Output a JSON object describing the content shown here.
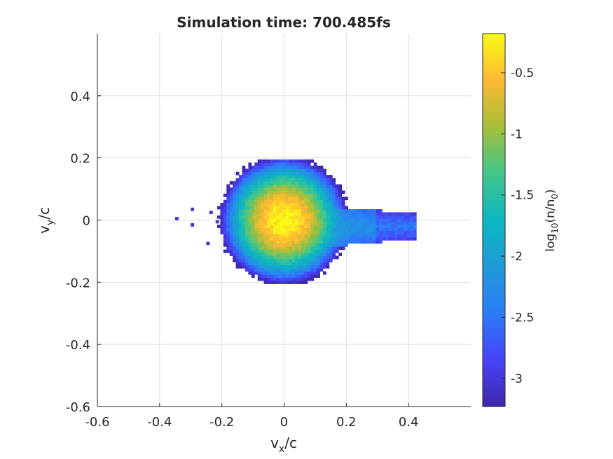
{
  "chart_data": {
    "type": "heatmap",
    "title": "Simulation time: 700.485fs",
    "xlabel": {
      "base": "v",
      "sub": "x",
      "rest": "/c"
    },
    "ylabel": {
      "base": "v",
      "sub": "y",
      "rest": "/c"
    },
    "xlim": [
      -0.6,
      0.6
    ],
    "ylim": [
      -0.6,
      0.6
    ],
    "xticks": [
      -0.6,
      -0.4,
      -0.2,
      0,
      0.2,
      0.4
    ],
    "xtick_labels": [
      "-0.6",
      "-0.4",
      "-0.2",
      "0",
      "0.2",
      "0.4"
    ],
    "yticks": [
      -0.6,
      -0.4,
      -0.2,
      0,
      0.2,
      0.4
    ],
    "ytick_labels": [
      "-0.6",
      "-0.4",
      "-0.2",
      "0",
      "0.2",
      "0.4"
    ],
    "grid": true,
    "colormap": "parula",
    "colorbar": {
      "label": {
        "base": "log",
        "sub": "10",
        "mid": "(n/n",
        "sub2": "0",
        "end": ")"
      },
      "range": [
        -3.23,
        -0.18
      ],
      "ticks": [
        -3,
        -2.5,
        -2,
        -1.5,
        -1,
        -0.5
      ],
      "tick_labels": [
        "-3",
        "-2.5",
        "-2",
        "-1.5",
        "-1",
        "-0.5"
      ]
    },
    "distribution": {
      "core": {
        "center": [
          0.0,
          0.0
        ],
        "sigma_x": 0.055,
        "sigma_y": 0.055,
        "peak_log10": -0.2
      },
      "tail": {
        "x_range": [
          0.1,
          0.43
        ],
        "center_y": -0.02,
        "half_width_y": 0.06,
        "level_log10": -2.5
      },
      "min_log10": -3.2,
      "bin_size": 0.01
    }
  }
}
